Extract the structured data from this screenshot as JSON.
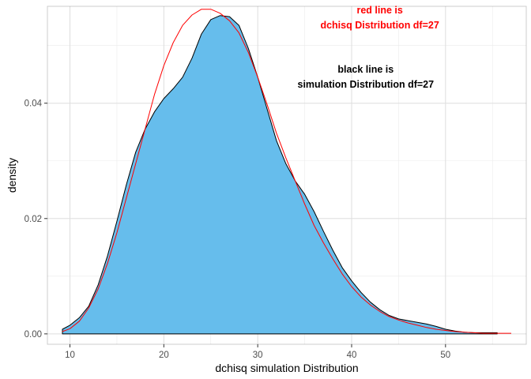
{
  "chart_data": {
    "type": "area",
    "xlabel": "dchisq simulation Distribution",
    "ylabel": "density",
    "xlim": [
      7.6,
      58.6
    ],
    "ylim": [
      -0.0018,
      0.0568
    ],
    "x_ticks": [
      10,
      20,
      30,
      40,
      50
    ],
    "x_tick_labels": [
      "10",
      "20",
      "30",
      "40",
      "50"
    ],
    "y_ticks": [
      0.0,
      0.02,
      0.04
    ],
    "y_tick_labels": [
      "0.00",
      "0.02",
      "0.04"
    ],
    "grid": true,
    "series": [
      {
        "role": "simulated density (filled)",
        "fill": "#66bdec",
        "stroke": "#000000",
        "x": [
          9.2,
          10,
          11,
          12,
          13,
          14,
          15,
          16,
          17,
          18,
          19,
          20,
          21,
          22,
          23,
          24,
          25,
          26,
          27,
          28,
          29,
          30,
          31,
          32,
          33,
          34,
          35,
          36,
          37,
          38,
          39,
          40,
          41,
          42,
          43,
          44,
          45,
          46,
          47,
          48,
          49,
          50,
          51,
          52,
          53,
          54,
          55.5
        ],
        "y": [
          0.0008,
          0.0015,
          0.0028,
          0.0048,
          0.0085,
          0.0135,
          0.0195,
          0.0258,
          0.0315,
          0.0355,
          0.0385,
          0.0408,
          0.0425,
          0.0445,
          0.0478,
          0.052,
          0.0545,
          0.0552,
          0.055,
          0.0535,
          0.0495,
          0.0445,
          0.039,
          0.0335,
          0.0295,
          0.0265,
          0.0242,
          0.0212,
          0.0178,
          0.0145,
          0.0115,
          0.0092,
          0.0072,
          0.0055,
          0.0042,
          0.0032,
          0.0026,
          0.0023,
          0.002,
          0.0017,
          0.0013,
          0.0008,
          0.0005,
          0.0003,
          0.0002,
          0.0002,
          0.0002
        ]
      },
      {
        "role": "theoretical chi-square density",
        "stroke": "#ff0000",
        "x": [
          9.2,
          10,
          11,
          12,
          13,
          14,
          15,
          16,
          17,
          18,
          19,
          20,
          21,
          22,
          23,
          24,
          25,
          26,
          27,
          28,
          29,
          30,
          31,
          32,
          33,
          34,
          35,
          36,
          37,
          38,
          39,
          40,
          41,
          42,
          43,
          44,
          45,
          46,
          47,
          48,
          49,
          50,
          51,
          52,
          53,
          54,
          55,
          57
        ],
        "y": [
          0.0004,
          0.0009,
          0.0022,
          0.0045,
          0.0078,
          0.0122,
          0.0175,
          0.0235,
          0.0295,
          0.0355,
          0.0415,
          0.0465,
          0.0505,
          0.0535,
          0.0553,
          0.0563,
          0.0563,
          0.0556,
          0.0543,
          0.0522,
          0.0488,
          0.0445,
          0.0398,
          0.0348,
          0.0305,
          0.0265,
          0.0225,
          0.0188,
          0.0158,
          0.013,
          0.0104,
          0.0082,
          0.0064,
          0.005,
          0.0039,
          0.003,
          0.0024,
          0.0019,
          0.0015,
          0.0011,
          0.0008,
          0.0006,
          0.0004,
          0.0003,
          0.0002,
          0.0001,
          0.0001,
          0.0001
        ]
      }
    ],
    "annotations": [
      {
        "lines": [
          "red line is",
          "dchisq Distribution df=27"
        ],
        "color": "#ff0000",
        "x": 43,
        "y": 0.0556
      },
      {
        "lines": [
          "black line is",
          "simulation Distribution df=27"
        ],
        "color": "#000000",
        "x": 41.5,
        "y": 0.0453
      }
    ]
  }
}
